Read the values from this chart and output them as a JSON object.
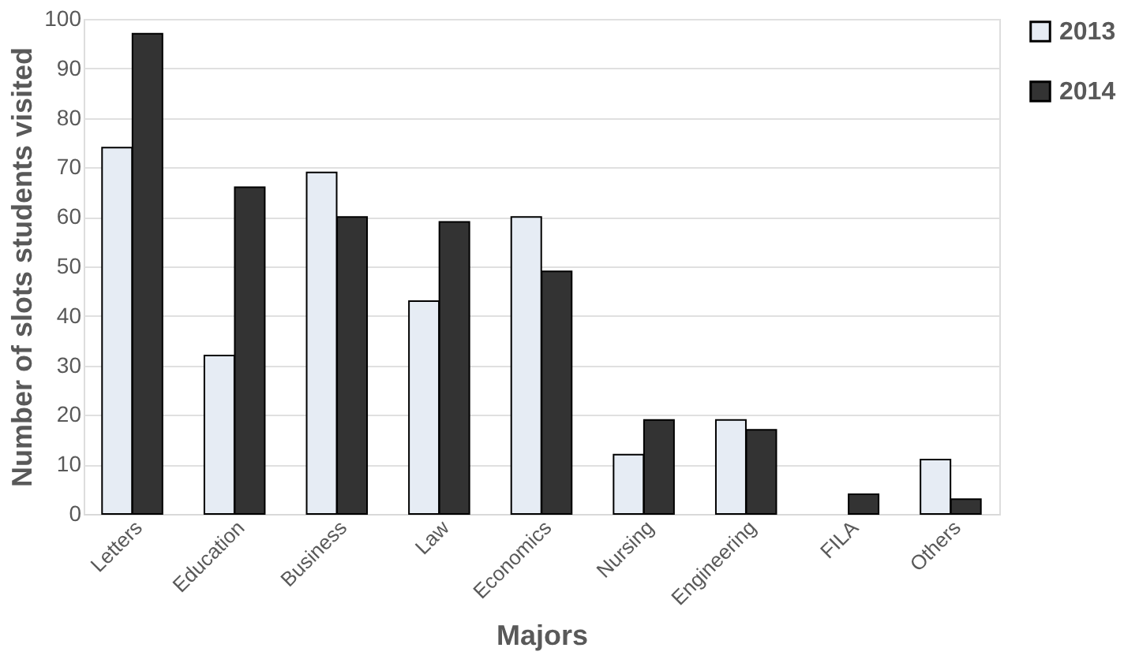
{
  "chart_data": {
    "type": "bar",
    "xlabel": "Majors",
    "ylabel": "Number of slots students visited",
    "categories": [
      "Letters",
      "Education",
      "Business",
      "Law",
      "Economics",
      "Nursing",
      "Engineering",
      "FILA",
      "Others"
    ],
    "series": [
      {
        "name": "2013",
        "color": "#e6ecf4",
        "values": [
          74,
          32,
          69,
          43,
          60,
          12,
          19,
          null,
          11
        ]
      },
      {
        "name": "2014",
        "color": "#333333",
        "values": [
          97,
          66,
          60,
          59,
          49,
          19,
          17,
          4,
          3
        ]
      }
    ],
    "ylim": [
      0,
      100
    ],
    "yticks": [
      0,
      10,
      20,
      30,
      40,
      50,
      60,
      70,
      80,
      90,
      100
    ],
    "grid": "y",
    "legend": "right"
  }
}
